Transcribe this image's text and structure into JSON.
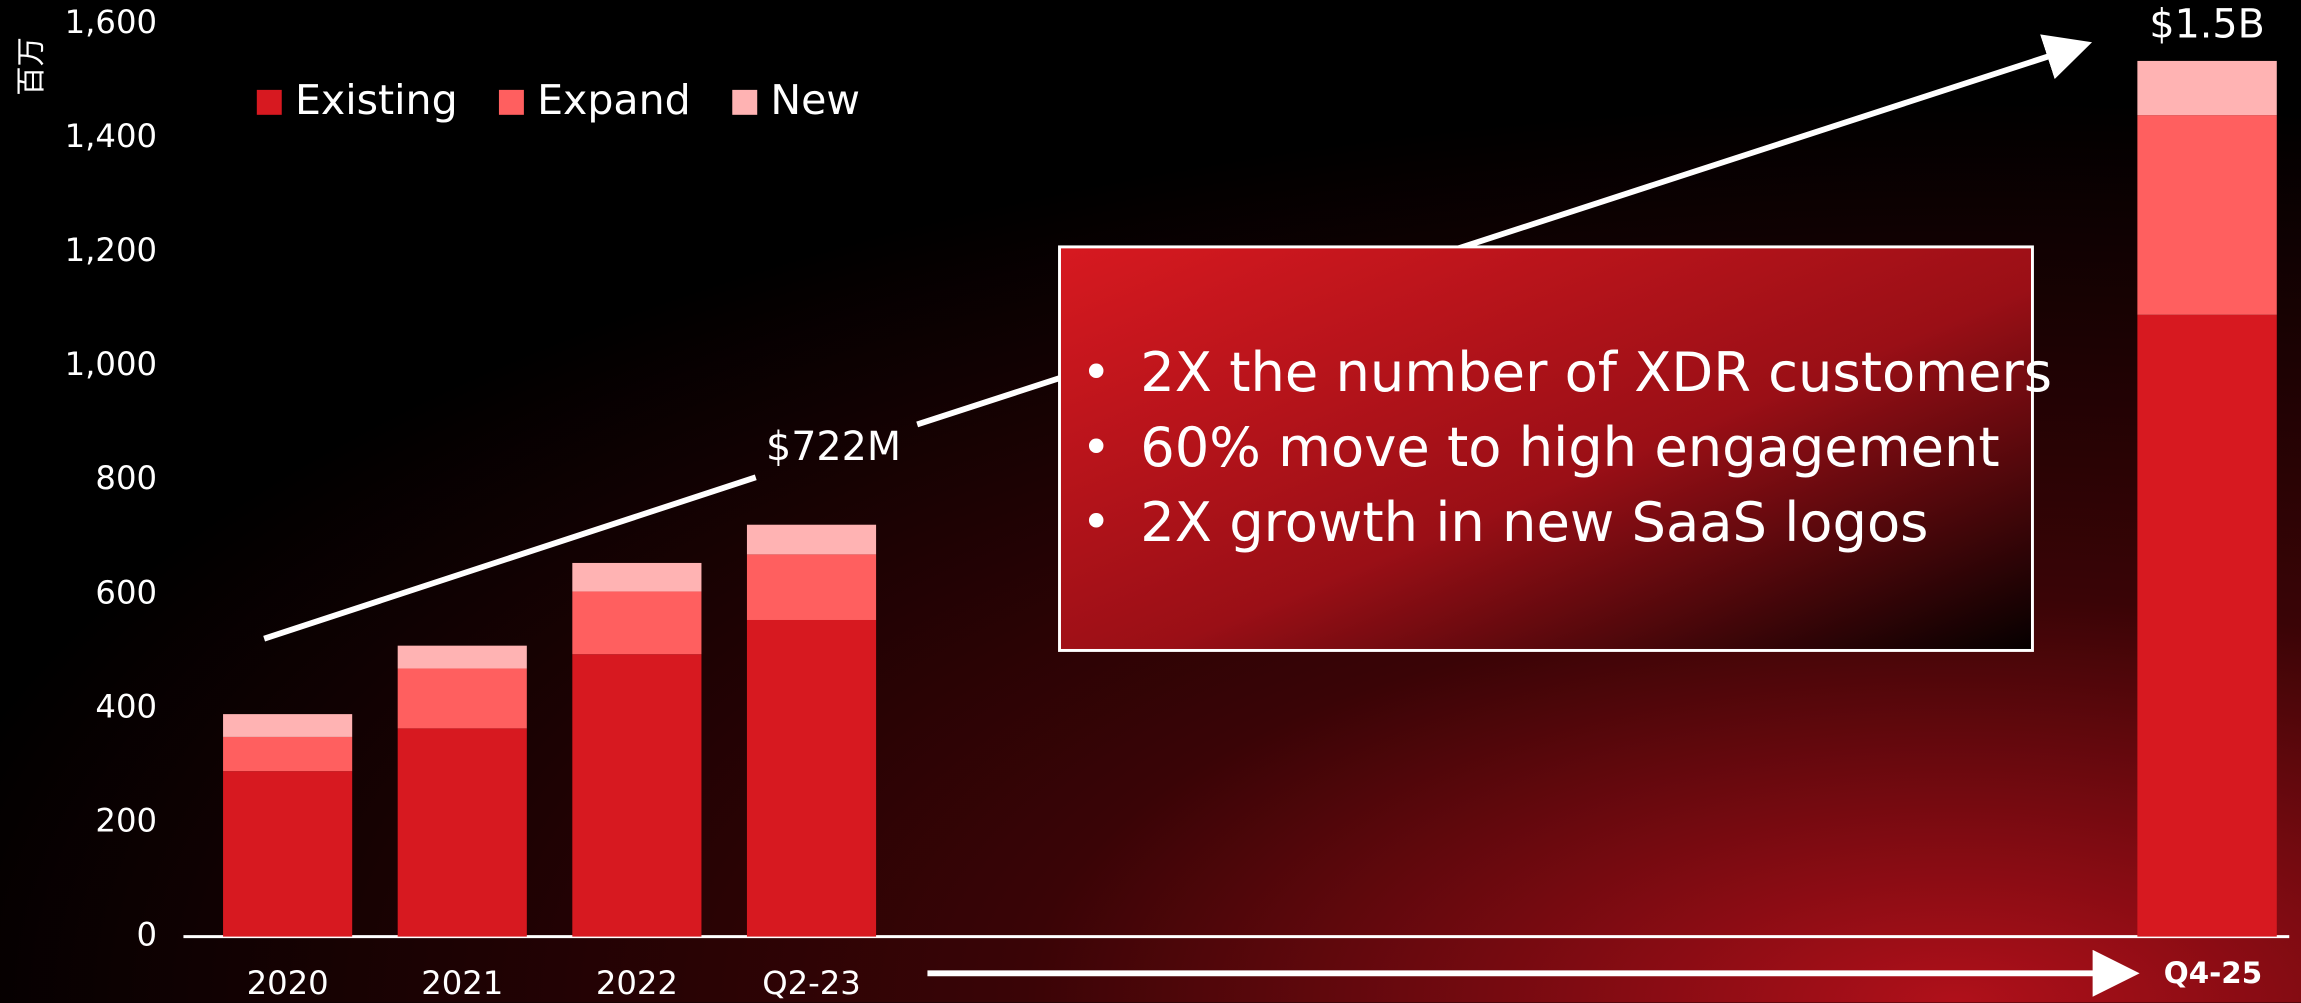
{
  "chart_data": {
    "type": "bar",
    "stacked": true,
    "y_axis_label": "百万",
    "categories": [
      "2020",
      "2021",
      "2022",
      "Q2-23",
      "Q4-25"
    ],
    "series": [
      {
        "name": "Existing",
        "color": "#d71920",
        "values": [
          290,
          365,
          495,
          555,
          1090
        ]
      },
      {
        "name": "Expand",
        "color": "#ff5f5f",
        "values": [
          60,
          105,
          110,
          115,
          350
        ]
      },
      {
        "name": "New",
        "color": "#ffb3b3",
        "values": [
          40,
          40,
          50,
          52,
          95
        ]
      }
    ],
    "ylim": [
      0,
      1600
    ],
    "yticks": [
      0,
      {
        "value": 200,
        "label": "200"
      },
      {
        "value": 400,
        "label": "400"
      },
      {
        "value": 600,
        "label": "600"
      },
      {
        "value": 800,
        "label": "800"
      },
      {
        "value": 1000,
        "label": "1,000"
      },
      {
        "value": 1200,
        "label": "1,200"
      },
      {
        "value": 1400,
        "label": "1,400"
      },
      {
        "value": 1600,
        "label": "1,600"
      }
    ],
    "annotations": [
      "$722M",
      "$1.5B"
    ],
    "bullets": [
      "2X the number of XDR customers",
      "60% move to high engagement",
      "2X growth in new SaaS logos"
    ]
  }
}
